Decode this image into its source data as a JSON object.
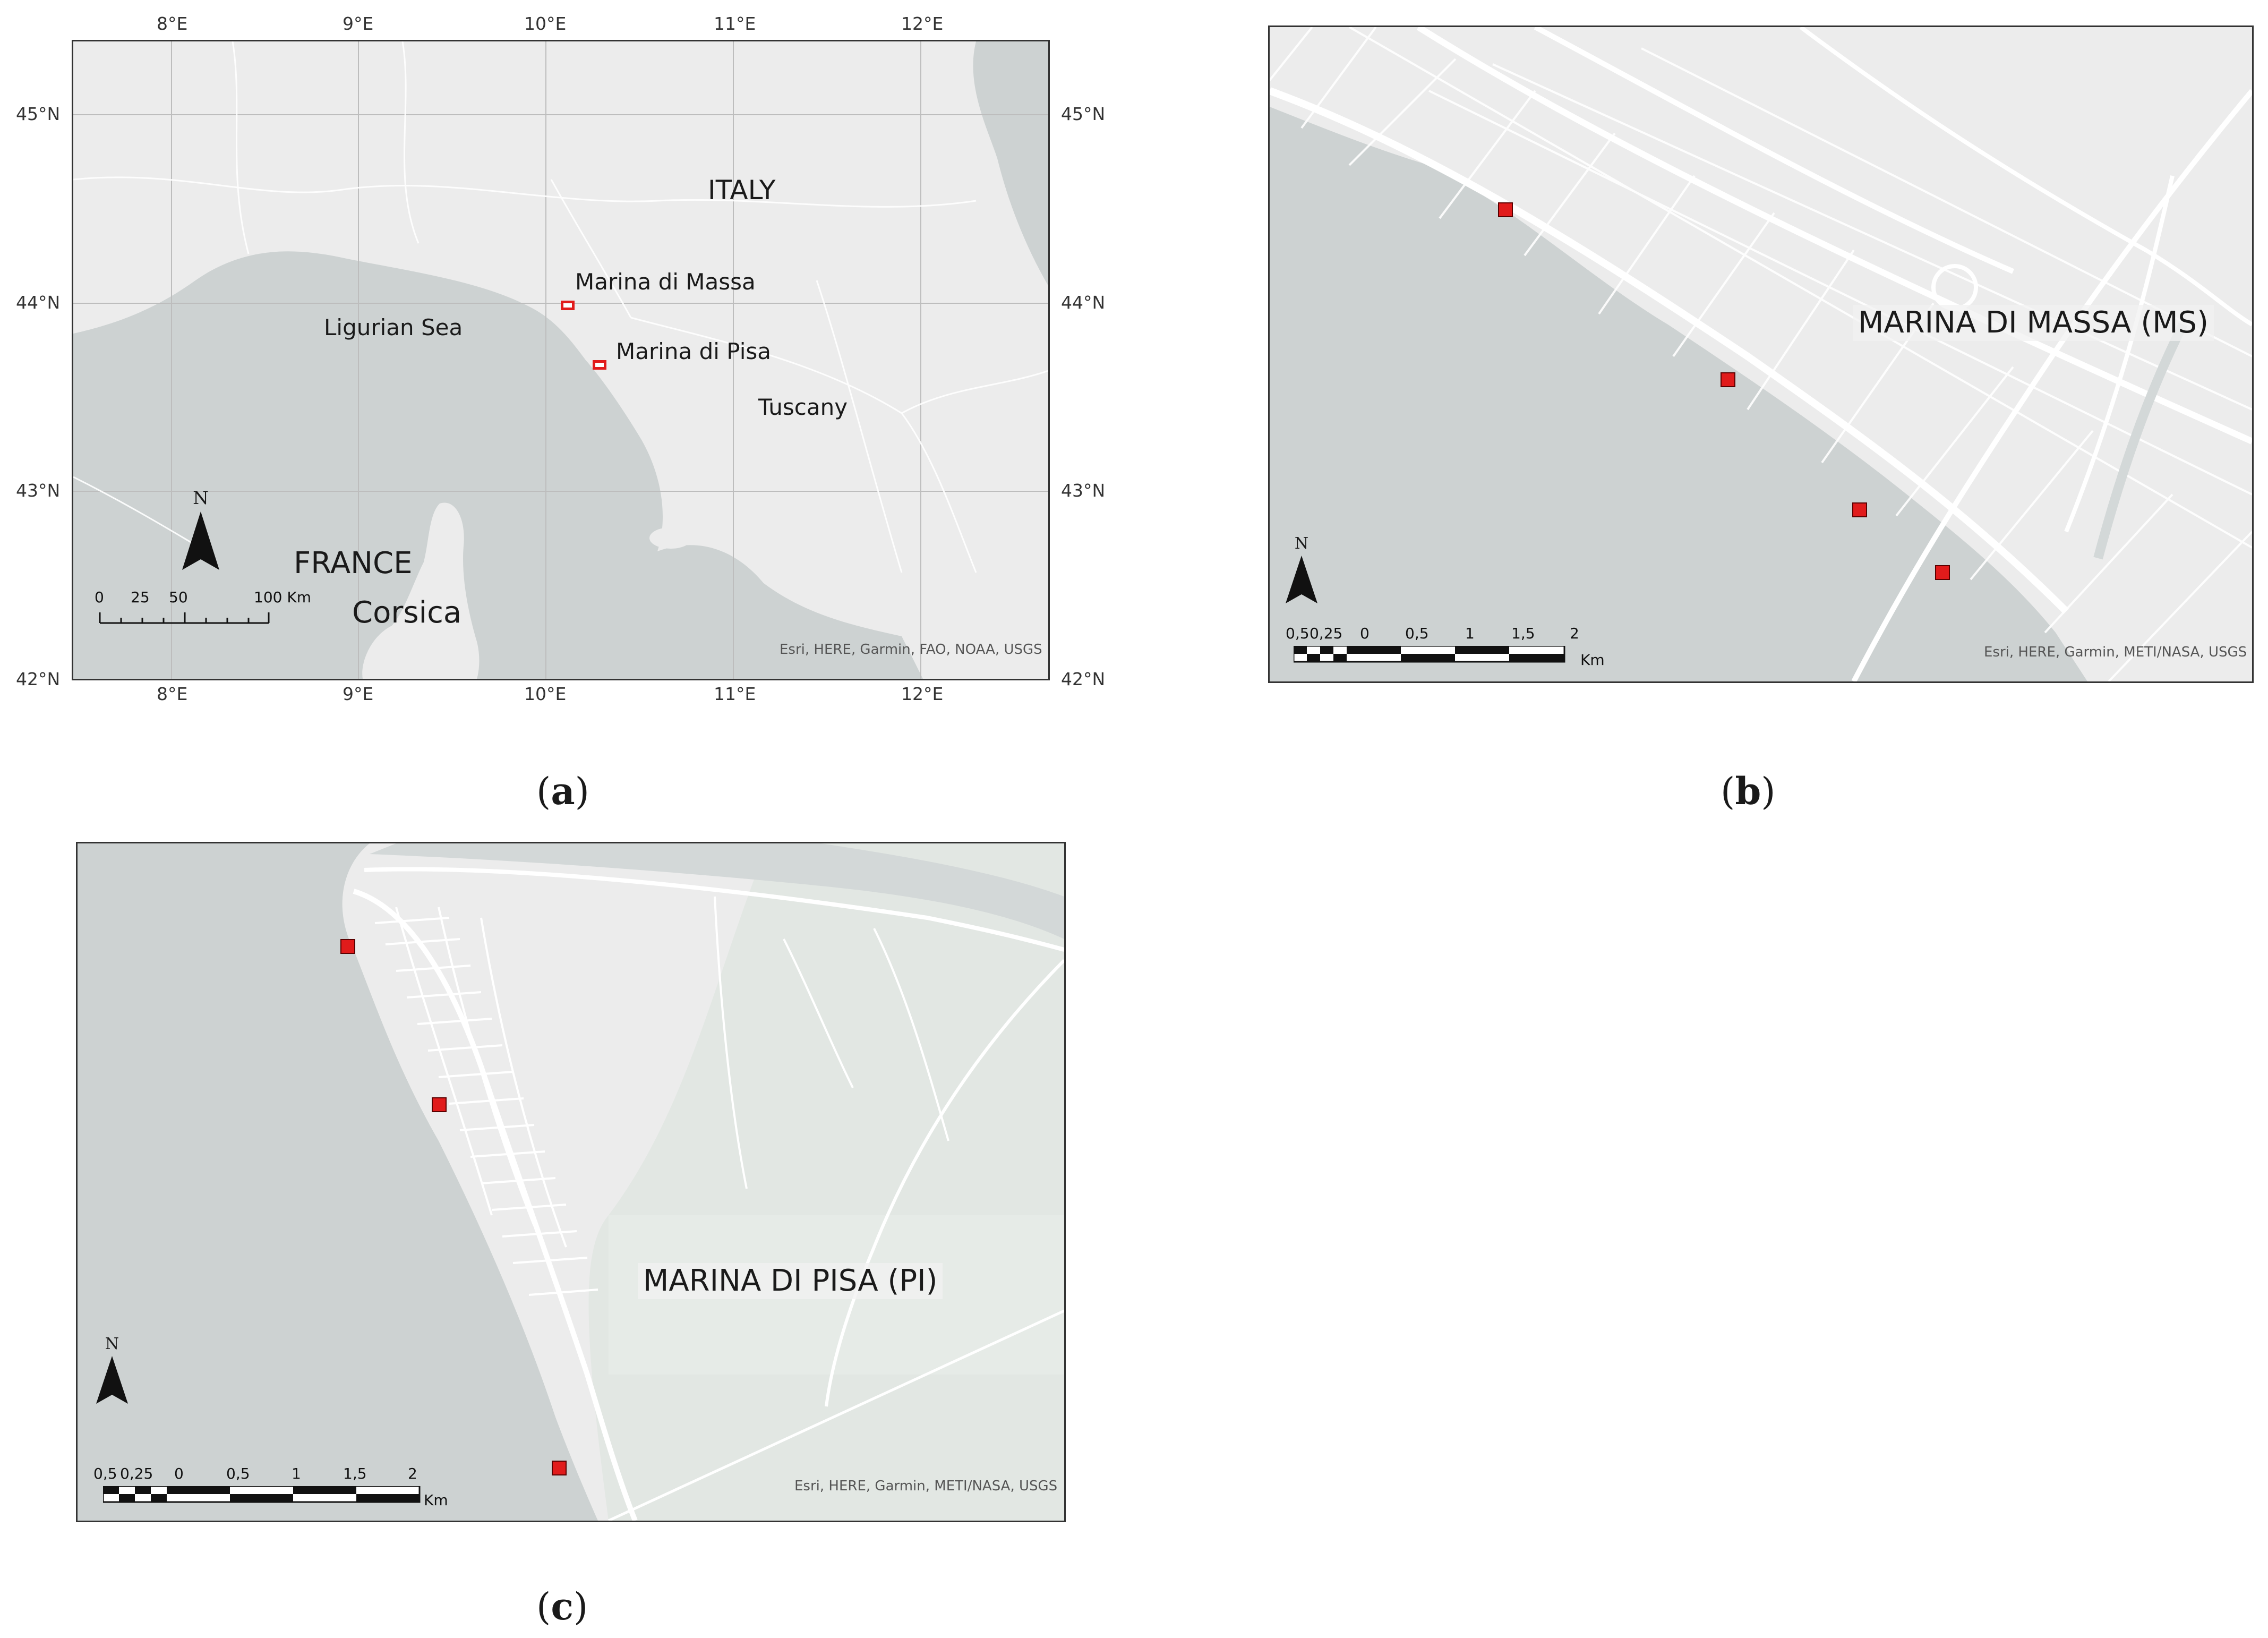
{
  "panel_a": {
    "top_ticks": [
      "8°E",
      "9°E",
      "10°E",
      "11°E",
      "12°E"
    ],
    "bottom_ticks": [
      "8°E",
      "9°E",
      "10°E",
      "11°E",
      "12°E"
    ],
    "left_ticks": [
      "45°N",
      "44°N",
      "43°N",
      "42°N"
    ],
    "right_ticks": [
      "45°N",
      "44°N",
      "43°N",
      "42°N"
    ],
    "labels": {
      "italy": "ITALY",
      "marina_di_massa": "Marina di Massa",
      "marina_di_pisa": "Marina di Pisa",
      "ligurian_sea": "Ligurian Sea",
      "tuscany": "Tuscany",
      "france": "FRANCE",
      "corsica": "Corsica"
    },
    "north": "N",
    "scale": {
      "ticks": [
        "0",
        "25",
        "50",
        "100 Km"
      ]
    },
    "attribution": "Esri, HERE, Garmin, FAO, NOAA, USGS",
    "caption_letter": "a"
  },
  "panel_b": {
    "title": "MARINA DI MASSA (MS)",
    "north": "N",
    "scale": {
      "ticks": [
        "0,5",
        "0,25",
        "0",
        "0,5",
        "1",
        "1,5",
        "2"
      ],
      "unit": "Km"
    },
    "attribution": "Esri, HERE, Garmin, METI/NASA, USGS",
    "caption_letter": "b",
    "sites": 4
  },
  "panel_c": {
    "title": "MARINA DI PISA (PI)",
    "north": "N",
    "scale": {
      "ticks": [
        "0,5",
        "0,25",
        "0",
        "0,5",
        "1",
        "1,5",
        "2"
      ],
      "unit": "Km"
    },
    "attribution": "Esri, HERE, Garmin, METI/NASA, USGS",
    "caption_letter": "c",
    "sites": 3
  },
  "colors": {
    "sea": "#cdd2d2",
    "land": "#ececec",
    "urban_land": "#f2f2f2",
    "roads": "#ffffff",
    "site_marker": "#e11b1b",
    "green_area": "#e2e7e3"
  }
}
